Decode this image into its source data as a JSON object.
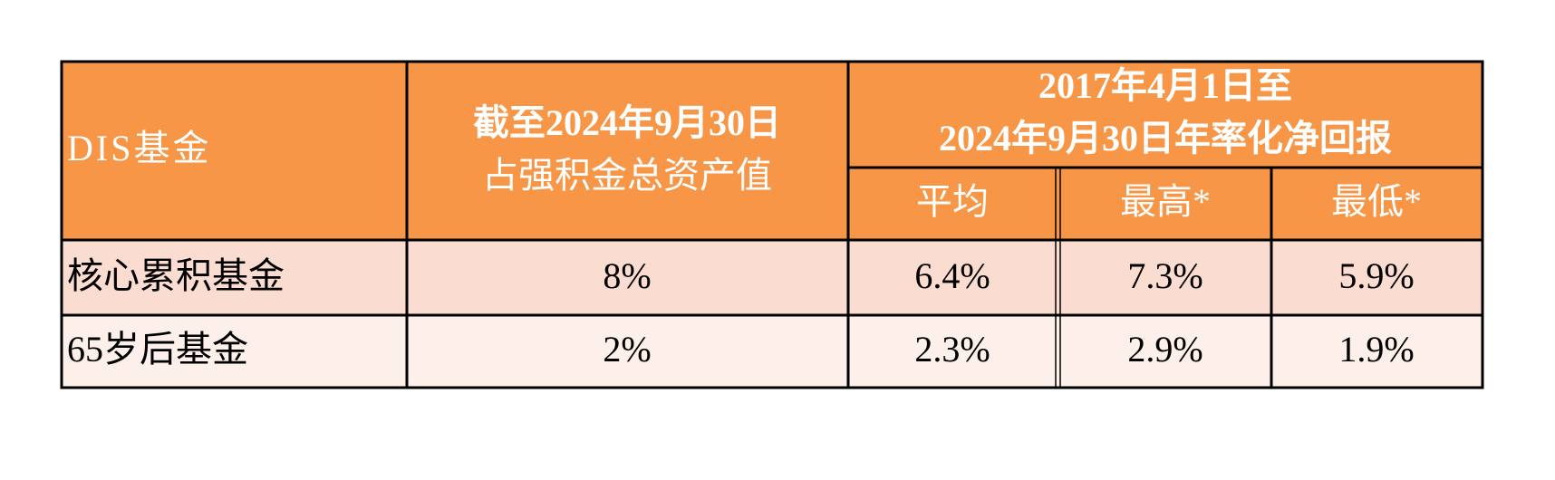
{
  "table": {
    "header": {
      "fund": "DIS基金",
      "share": [
        "截至2024年9月30日",
        "占强积金总资产值"
      ],
      "returns": [
        "2017年4月1日至",
        "2024年9月30日年率化净回报"
      ],
      "sub": [
        "平均",
        "最高*",
        "最低*"
      ]
    },
    "rows": [
      [
        "核心累积基金",
        "8%",
        "6.4%",
        "7.3%",
        "5.9%"
      ],
      [
        "65岁后基金",
        "2%",
        "2.3%",
        "2.9%",
        "1.9%"
      ]
    ]
  }
}
